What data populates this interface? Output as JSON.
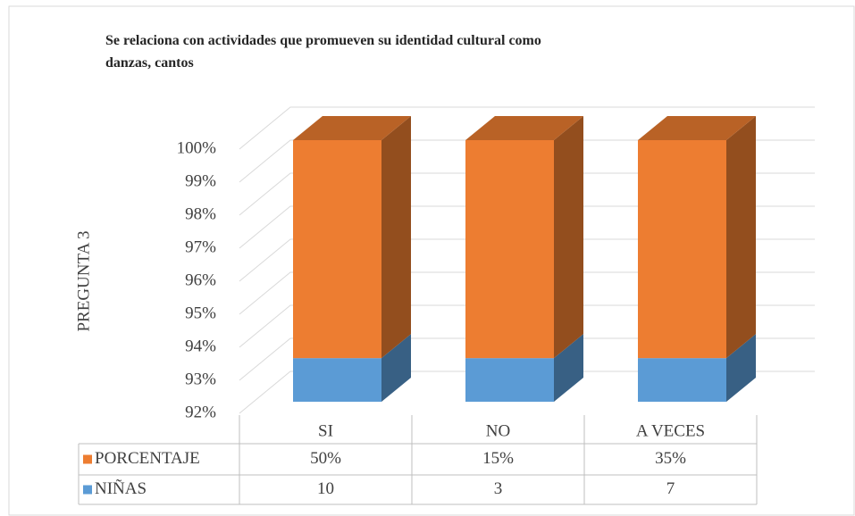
{
  "chart_data": {
    "type": "stacked_bar_3d",
    "title": "Se relaciona con actividades que promueven su identidad cultural como danzas, cantos",
    "y_label": "PREGUNTA 3",
    "categories": [
      "SI",
      "NO",
      "A VECES"
    ],
    "series": [
      {
        "name": "NIÑAS",
        "color": "#5b9bd5",
        "values": [
          10,
          3,
          7
        ]
      },
      {
        "name": "PORCENTAJE",
        "color": "#ed7d31",
        "values": [
          50,
          15,
          35
        ],
        "value_labels": [
          "50%",
          "15%",
          "35%"
        ]
      }
    ],
    "ylim": [
      92,
      100
    ],
    "yticks": [
      {
        "value": 92,
        "label": "92%"
      },
      {
        "value": 93,
        "label": "93%"
      },
      {
        "value": 94,
        "label": "94%"
      },
      {
        "value": 95,
        "label": "95%"
      },
      {
        "value": 96,
        "label": "96%"
      },
      {
        "value": 97,
        "label": "97%"
      },
      {
        "value": 98,
        "label": "98%"
      },
      {
        "value": 99,
        "label": "99%"
      },
      {
        "value": 100,
        "label": "100%"
      }
    ],
    "grid": true
  }
}
